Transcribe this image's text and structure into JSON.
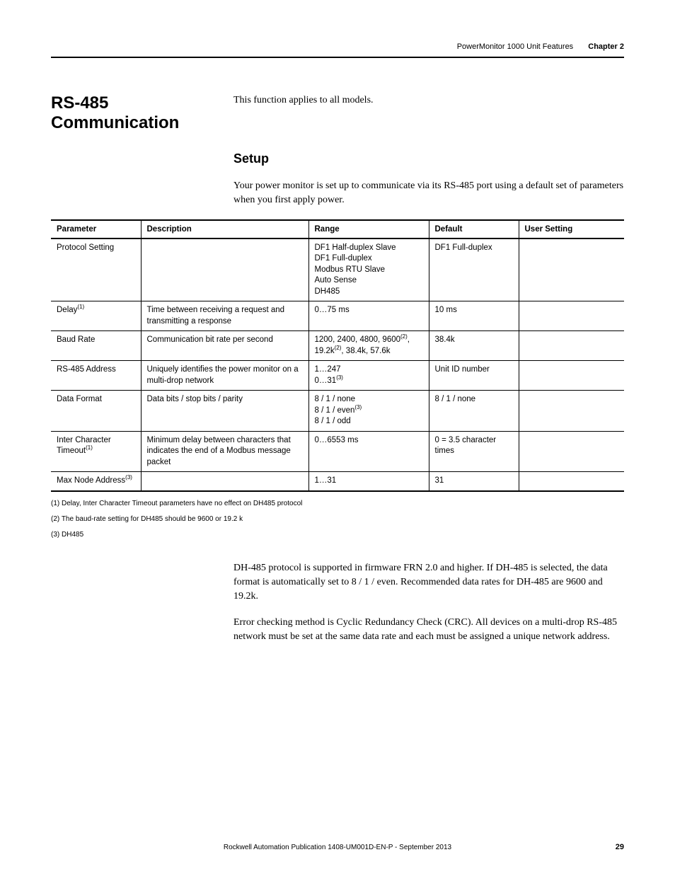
{
  "header": {
    "breadcrumb": "PowerMonitor 1000 Unit Features",
    "chapter": "Chapter 2"
  },
  "section": {
    "title": "RS-485 Communication",
    "intro": "This function applies to all models.",
    "subheading": "Setup",
    "setup_intro": "Your power monitor is set up to communicate via its RS-485 port using a default set of parameters when you first apply power."
  },
  "table": {
    "headers": {
      "parameter": "Parameter",
      "description": "Description",
      "range": "Range",
      "default": "Default",
      "user_setting": "User Setting"
    },
    "rows": [
      {
        "param_html": "Protocol Setting",
        "desc_html": "",
        "range_html": "DF1 Half-duplex Slave<br>DF1 Full-duplex<br>Modbus RTU Slave<br>Auto Sense<br>DH485",
        "default_html": "DF1 Full-duplex"
      },
      {
        "param_html": "Delay<sup>(1)</sup>",
        "desc_html": "Time between receiving a request and transmitting a response",
        "range_html": "0…75 ms",
        "default_html": "10 ms"
      },
      {
        "param_html": "Baud Rate",
        "desc_html": "Communication bit rate per second",
        "range_html": "1200, 2400, 4800, 9600<sup>(2)</sup>, 19.2k<sup>(2)</sup>, 38.4k, 57.6k",
        "default_html": "38.4k"
      },
      {
        "param_html": "RS-485 Address",
        "desc_html": "Uniquely identifies the power monitor on a multi-drop network",
        "range_html": "1…247<br>0…31<sup>(3)</sup>",
        "default_html": "Unit ID number"
      },
      {
        "param_html": "Data Format",
        "desc_html": "Data bits / stop bits / parity",
        "range_html": "8 / 1 / none<br>8 / 1 / even<sup>(3)</sup><br>8 / 1 / odd",
        "default_html": "8 / 1 / none"
      },
      {
        "param_html": "Inter Character Timeout<sup>(1)</sup>",
        "desc_html": "Minimum delay between characters that indicates the end of a Modbus message packet",
        "range_html": "0…6553 ms",
        "default_html": "0 = 3.5 character times"
      },
      {
        "param_html": "Max Node Address<sup>(3)</sup>",
        "desc_html": "",
        "range_html": "1…31",
        "default_html": "31"
      }
    ]
  },
  "footnotes": {
    "f1": "(1)  Delay, Inter Character Timeout parameters have no effect on DH485 protocol",
    "f2": "(2)  The baud-rate setting for DH485 should be 9600 or 19.2 k",
    "f3": "(3)  DH485"
  },
  "after_table": {
    "p1": "DH-485 protocol is supported in firmware FRN 2.0 and higher. If DH-485 is selected, the data format is automatically set to 8 / 1 / even. Recommended data rates for DH-485 are 9600 and 19.2k.",
    "p2": "Error checking method is Cyclic Redundancy Check (CRC). All devices on a multi-drop RS-485 network must be set at the same data rate and each must be assigned a unique network address."
  },
  "footer": {
    "publication": "Rockwell Automation Publication 1408-UM001D-EN-P - September 2013",
    "page": "29"
  }
}
